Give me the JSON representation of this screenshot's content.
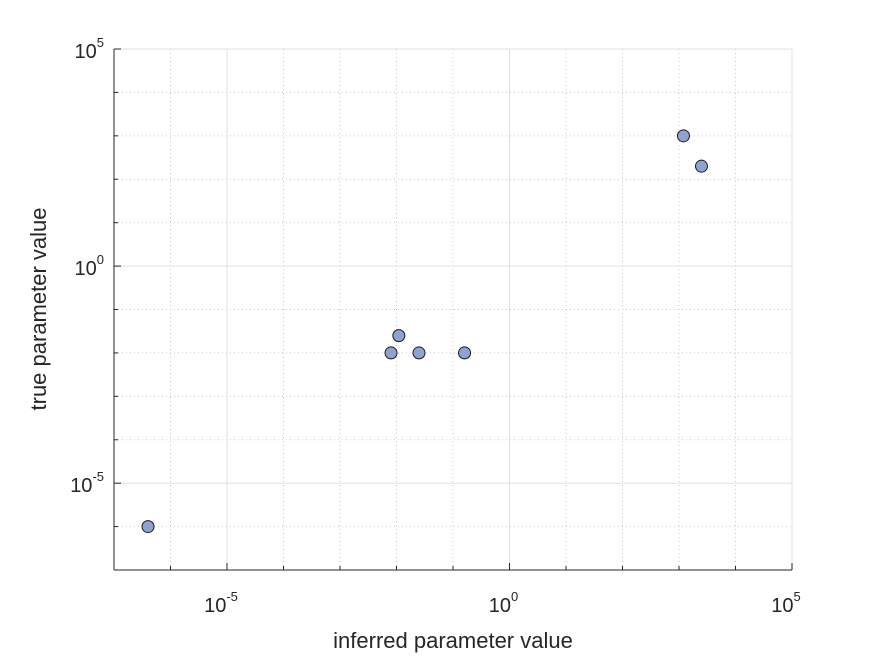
{
  "chart_data": {
    "type": "scatter",
    "title": "",
    "xlabel": "inferred parameter value",
    "ylabel": "true parameter value",
    "xscale": "log",
    "yscale": "log",
    "xlim": [
      1e-07,
      100000
    ],
    "ylim": [
      1e-07,
      100000
    ],
    "grid": true,
    "minor_grid": true,
    "legend": "none",
    "x_ticks": [
      {
        "value": 1e-05,
        "base": "10",
        "exp": "-5"
      },
      {
        "value": 1,
        "base": "10",
        "exp": "0"
      },
      {
        "value": 100000,
        "base": "10",
        "exp": "5"
      }
    ],
    "y_ticks": [
      {
        "value": 1e-05,
        "base": "10",
        "exp": "-5"
      },
      {
        "value": 1,
        "base": "10",
        "exp": "0"
      },
      {
        "value": 100000,
        "base": "10",
        "exp": "5"
      }
    ],
    "series": [
      {
        "marker_color": "#8fa3d0",
        "edge_color": "#1a1a1a",
        "points": [
          {
            "x": 4e-07,
            "y": 1e-06
          },
          {
            "x": 0.008,
            "y": 0.01
          },
          {
            "x": 0.011,
            "y": 0.025
          },
          {
            "x": 0.025,
            "y": 0.01
          },
          {
            "x": 0.16,
            "y": 0.01
          },
          {
            "x": 1200,
            "y": 1000
          },
          {
            "x": 2500,
            "y": 200
          }
        ]
      }
    ]
  }
}
